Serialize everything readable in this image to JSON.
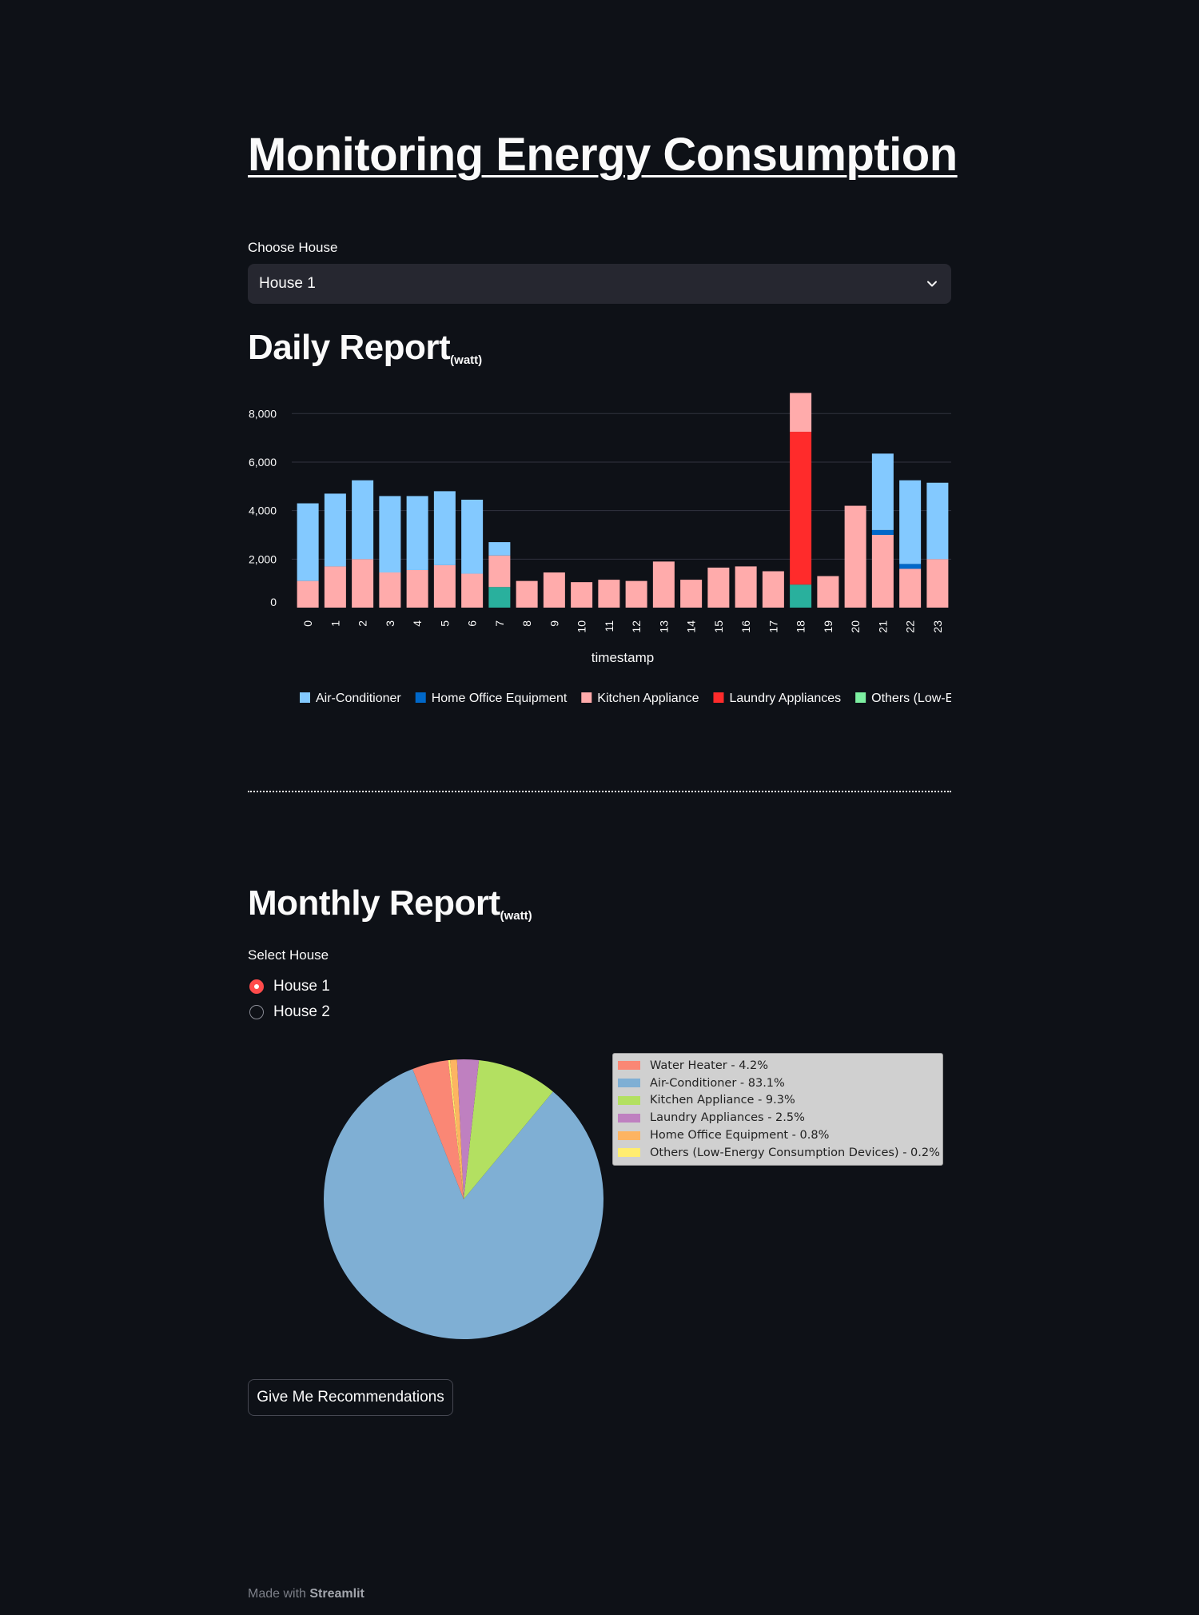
{
  "app": {
    "title": "Monitoring Energy Consumption",
    "footer_prefix": "Made with",
    "footer_brand": "Streamlit"
  },
  "house_select": {
    "label": "Choose House",
    "value": "House 1"
  },
  "daily": {
    "heading": "Daily Report",
    "unit": "(watt)"
  },
  "monthly": {
    "heading": "Monthly Report",
    "unit": "(watt)",
    "radio_label": "Select House",
    "options": [
      "House 1",
      "House 2"
    ],
    "selected": "House 1"
  },
  "recommend_button": "Give Me Recommendations",
  "colors": {
    "background": "#0e1117",
    "accent": "#ff4b4b",
    "air_conditioner": "#83c9ff",
    "home_office": "#0068c9",
    "kitchen": "#ffabab",
    "laundry": "#ff2b2b",
    "others": "#29b09d"
  },
  "chart_data": [
    {
      "type": "bar",
      "stacked": true,
      "xlabel": "timestamp",
      "ylabel": "",
      "ylim": [
        0,
        8900
      ],
      "yticks": [
        0,
        2000,
        4000,
        6000,
        8000
      ],
      "ytick_labels": [
        "0",
        "2,000",
        "4,000",
        "6,000",
        "8,000"
      ],
      "categories": [
        "0",
        "1",
        "2",
        "3",
        "4",
        "5",
        "6",
        "7",
        "8",
        "9",
        "10",
        "11",
        "12",
        "13",
        "14",
        "15",
        "16",
        "17",
        "18",
        "19",
        "20",
        "21",
        "22",
        "23"
      ],
      "series": [
        {
          "name": "Others (Low-Energy Consumption Devices)",
          "legend_label": "Others (Low-E",
          "color": "#29b09d",
          "legend_color": "#7defa1",
          "values": [
            0,
            0,
            0,
            0,
            0,
            0,
            0,
            850,
            0,
            0,
            0,
            0,
            0,
            0,
            0,
            0,
            0,
            0,
            950,
            0,
            0,
            0,
            0,
            0
          ]
        },
        {
          "name": "Laundry Appliances",
          "legend_label": "Laundry Appliances",
          "color": "#ff2b2b",
          "values": [
            0,
            0,
            0,
            0,
            0,
            0,
            0,
            0,
            0,
            0,
            0,
            0,
            0,
            0,
            0,
            0,
            0,
            0,
            6300,
            0,
            0,
            0,
            0,
            0
          ]
        },
        {
          "name": "Kitchen Appliance",
          "legend_label": "Kitchen Appliance",
          "color": "#ffabab",
          "values": [
            1100,
            1700,
            2000,
            1450,
            1550,
            1750,
            1400,
            1300,
            1100,
            1450,
            1050,
            1150,
            1100,
            1900,
            1150,
            1650,
            1700,
            1500,
            1600,
            1300,
            4200,
            3000,
            1600,
            2000
          ]
        },
        {
          "name": "Home Office Equipment",
          "legend_label": "Home Office Equipment",
          "color": "#0068c9",
          "values": [
            0,
            0,
            0,
            0,
            0,
            0,
            0,
            0,
            0,
            0,
            0,
            0,
            0,
            0,
            0,
            0,
            0,
            0,
            0,
            0,
            0,
            200,
            200,
            0
          ]
        },
        {
          "name": "Air-Conditioner",
          "legend_label": "Air-Conditioner",
          "color": "#83c9ff",
          "values": [
            3200,
            3000,
            3250,
            3150,
            3050,
            3050,
            3050,
            550,
            0,
            0,
            0,
            0,
            0,
            0,
            0,
            0,
            0,
            0,
            0,
            0,
            0,
            3150,
            3450,
            3150
          ]
        }
      ],
      "legend_order": [
        "Air-Conditioner",
        "Home Office Equipment",
        "Kitchen Appliance",
        "Laundry Appliances",
        "Others (Low-Energy Consumption Devices)"
      ],
      "legend_position": "bottom"
    },
    {
      "type": "pie",
      "legend_position": "top-right",
      "slices": [
        {
          "label": "Water Heater - 4.2%",
          "name": "Water Heater",
          "value": 4.2,
          "color": "#fa8775"
        },
        {
          "label": "Air-Conditioner - 83.1%",
          "name": "Air-Conditioner",
          "value": 83.1,
          "color": "#7fafd4"
        },
        {
          "label": "Kitchen Appliance - 9.3%",
          "name": "Kitchen Appliance",
          "value": 9.3,
          "color": "#b3e061"
        },
        {
          "label": "Laundry Appliances - 2.5%",
          "name": "Laundry Appliances",
          "value": 2.5,
          "color": "#bf80c0"
        },
        {
          "label": "Home Office Equipment - 0.8%",
          "name": "Home Office Equipment",
          "value": 0.8,
          "color": "#fdb462"
        },
        {
          "label": "Others (Low-Energy Consumption Devices) - 0.2%",
          "name": "Others (Low-Energy Consumption Devices)",
          "value": 0.2,
          "color": "#ffed6f"
        }
      ]
    }
  ]
}
